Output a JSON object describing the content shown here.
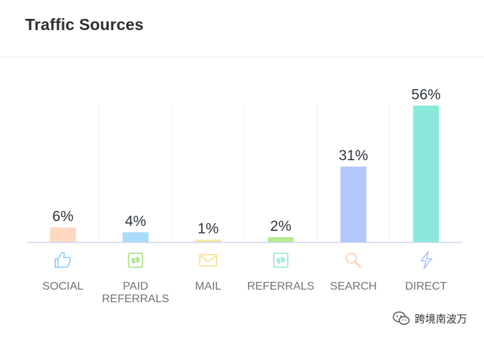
{
  "header": {
    "title": "Traffic Sources"
  },
  "chart_data": {
    "type": "bar",
    "title": "Traffic Sources",
    "categories": [
      "SOCIAL",
      "PAID REFERRALS",
      "MAIL",
      "REFERRALS",
      "SEARCH",
      "DIRECT"
    ],
    "category_lines": [
      [
        "SOCIAL"
      ],
      [
        "PAID",
        "REFERRALS"
      ],
      [
        "MAIL"
      ],
      [
        "REFERRALS"
      ],
      [
        "SEARCH"
      ],
      [
        "DIRECT"
      ]
    ],
    "values": [
      6,
      4,
      1,
      2,
      31,
      56
    ],
    "value_labels": [
      "6%",
      "4%",
      "1%",
      "2%",
      "31%",
      "56%"
    ],
    "unit": "%",
    "ylim": [
      0,
      56
    ],
    "grid": true,
    "colors": [
      "#ffd8c2",
      "#a9dcfa",
      "#fbe9a3",
      "#b5ea92",
      "#b3c8ff",
      "#8ae9db"
    ],
    "icons": [
      "thumbs-up-icon",
      "repeat-icon",
      "mail-icon",
      "repeat-icon",
      "search-icon",
      "lightning-icon"
    ]
  },
  "watermark": {
    "text": "跨境南波万"
  }
}
